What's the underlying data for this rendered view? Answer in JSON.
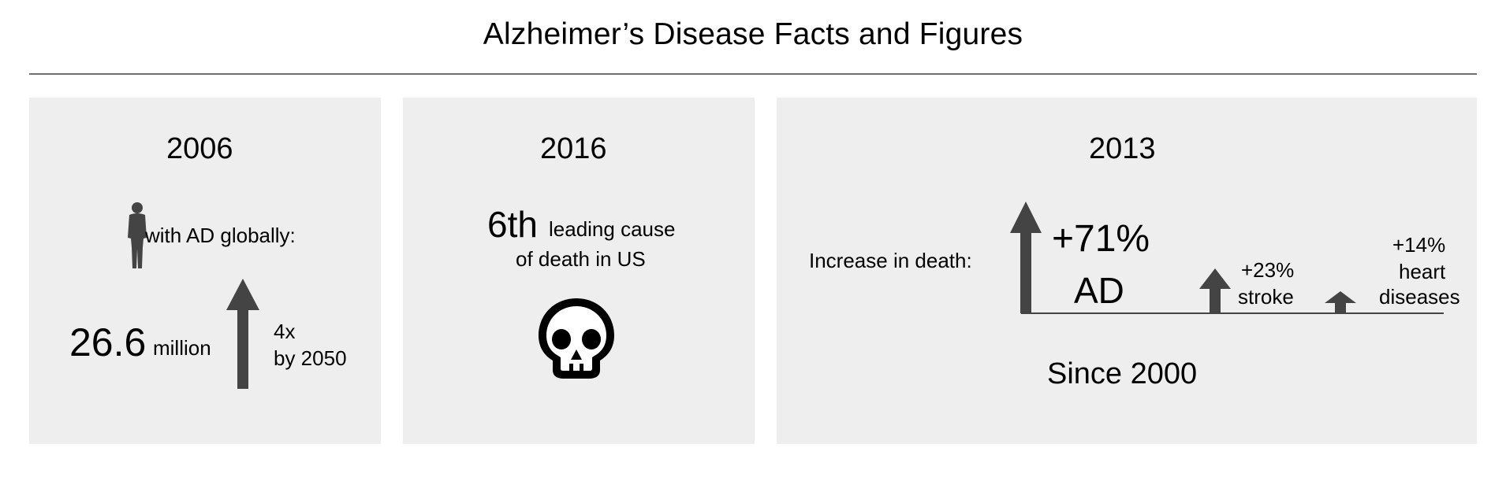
{
  "title": "Alzheimer’s Disease Facts and Figures",
  "colors": {
    "panel_bg": "#eeeeee",
    "arrow": "#444444",
    "rule": "#6f6f6f"
  },
  "panels": [
    {
      "year": "2006",
      "icon": "person-silhouette-icon",
      "caption": "with AD globally:",
      "big_number": "26.6",
      "unit": "million",
      "growth_line1": "4x",
      "growth_line2": "by 2050"
    },
    {
      "year": "2016",
      "rank": "6th",
      "line1": "leading cause",
      "line2": "of death in US",
      "icon": "skull-icon"
    },
    {
      "year": "2013",
      "label": "Increase in death:",
      "footer": "Since 2000",
      "items": [
        {
          "value": "+71%",
          "name": "AD"
        },
        {
          "value": "+23%",
          "name": "stroke"
        },
        {
          "value": "+14%",
          "name_line1": "heart",
          "name_line2": "diseases"
        }
      ]
    }
  ]
}
